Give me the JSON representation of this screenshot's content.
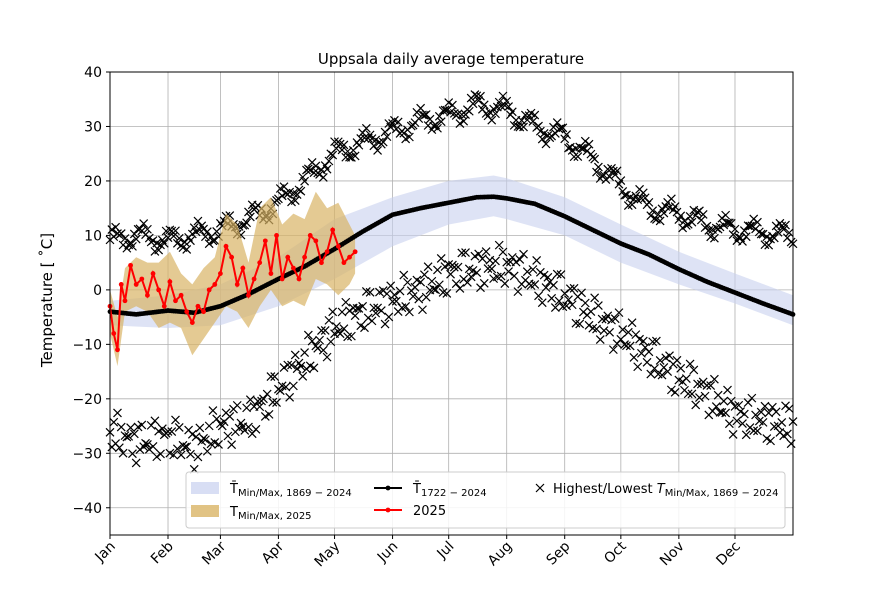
{
  "chart_data": {
    "type": "line",
    "title": "Uppsala daily average temperature",
    "xlabel": "",
    "ylabel": "Temperature [ ˚C]",
    "ylim": [
      -45,
      40
    ],
    "yticks": [
      -40,
      -30,
      -20,
      -10,
      0,
      10,
      20,
      30,
      40
    ],
    "xlim": [
      1,
      366
    ],
    "months": [
      "Jan",
      "Feb",
      "Mar",
      "Apr",
      "May",
      "Jun",
      "Jul",
      "Aug",
      "Sep",
      "Oct",
      "Nov",
      "Dec"
    ],
    "month_start_days": [
      1,
      32,
      60,
      91,
      121,
      152,
      182,
      213,
      244,
      274,
      305,
      335
    ],
    "grid": true,
    "legend_position": "lower-center",
    "legend": {
      "band_hist": {
        "main": "T̄",
        "sub": "Min/Max, 1869 − 2024"
      },
      "band_2025": {
        "main": "T",
        "sub": "Min/Max, 2025"
      },
      "mean_hist": {
        "main": "T̄",
        "sub": "1722 − 2024"
      },
      "line_2025": {
        "main": "2025"
      },
      "records": {
        "main": "Highest/Lowest ",
        "italic": "T",
        "sub": "Min/Max, 1869 − 2024"
      }
    },
    "colors": {
      "band_hist": "#c8d0ef",
      "band_2025": "#d9b465",
      "mean_hist": "#000000",
      "line_2025": "#ff0000",
      "records": "#000000",
      "grid": "#b0b0b0"
    },
    "mean_hist": {
      "x": [
        1,
        15,
        32,
        46,
        60,
        75,
        91,
        105,
        121,
        136,
        152,
        167,
        182,
        197,
        206,
        213,
        228,
        244,
        259,
        274,
        289,
        305,
        320,
        335,
        350,
        366
      ],
      "y": [
        -4,
        -4.5,
        -3.8,
        -4.2,
        -3,
        -0.8,
        2,
        4.3,
        7.5,
        10.7,
        13.8,
        15,
        16,
        17,
        17.1,
        16.8,
        15.8,
        13.5,
        11,
        8.5,
        6.5,
        3.8,
        1.5,
        -0.5,
        -2.5,
        -4.5
      ]
    },
    "band_hist": {
      "x": [
        1,
        32,
        60,
        91,
        121,
        152,
        182,
        206,
        213,
        244,
        274,
        305,
        335,
        366
      ],
      "upper": [
        -2,
        -1,
        1,
        6,
        13,
        17,
        20,
        21,
        20.5,
        17,
        12,
        7,
        3,
        -1
      ],
      "lower": [
        -6.5,
        -7,
        -6.5,
        -3,
        2,
        8,
        12,
        13.5,
        13,
        10,
        5,
        1,
        -2.5,
        -6.5
      ]
    },
    "line_2025": {
      "x": [
        1,
        3,
        5,
        7,
        9,
        12,
        15,
        18,
        21,
        24,
        27,
        30,
        33,
        36,
        39,
        42,
        45,
        48,
        51,
        54,
        57,
        60,
        63,
        66,
        69,
        72,
        75,
        78,
        81,
        84,
        87,
        90,
        93,
        96,
        99,
        102,
        105,
        108,
        111,
        114,
        117,
        120,
        123,
        126,
        129,
        132
      ],
      "y": [
        -3,
        -8,
        -11,
        1,
        -2,
        4.5,
        1,
        2,
        -1,
        3,
        0,
        -3,
        1.5,
        -2,
        -1,
        -4,
        -6,
        -3,
        -4,
        0,
        1,
        3,
        8,
        6,
        1,
        4,
        -1,
        2,
        5,
        9,
        3,
        10,
        2,
        6,
        4,
        2,
        6,
        10,
        9,
        5,
        7,
        11,
        8,
        5,
        6,
        7
      ]
    },
    "band_2025": {
      "x": [
        1,
        5,
        9,
        15,
        21,
        27,
        33,
        39,
        45,
        51,
        57,
        63,
        69,
        75,
        81,
        87,
        93,
        99,
        105,
        111,
        117,
        123,
        129,
        132
      ],
      "upper": [
        0,
        -5,
        4,
        6,
        5,
        5,
        7,
        3,
        1,
        4,
        6,
        14,
        12,
        5,
        15,
        17,
        12,
        14,
        13,
        18,
        15,
        16,
        12,
        10
      ],
      "lower": [
        -8,
        -14,
        -4,
        -3,
        -4,
        -7,
        -6,
        -7,
        -12,
        -9,
        -6,
        -3,
        -4,
        -7,
        -3,
        0,
        -3,
        -2,
        -3,
        2,
        1,
        -1,
        1,
        3
      ]
    },
    "record_high": {
      "x": [
        1,
        15,
        32,
        46,
        60,
        75,
        91,
        105,
        121,
        136,
        152,
        167,
        182,
        197,
        213,
        228,
        244,
        259,
        274,
        289,
        305,
        320,
        335,
        350,
        366
      ],
      "y": [
        9,
        10,
        9,
        10,
        11,
        13,
        16,
        20,
        25,
        27,
        29,
        31,
        32,
        34,
        33,
        30,
        28,
        24,
        19,
        15,
        14,
        12,
        11,
        10.5,
        10
      ]
    },
    "record_low": {
      "x": [
        1,
        15,
        32,
        46,
        60,
        75,
        91,
        105,
        121,
        136,
        152,
        167,
        182,
        197,
        213,
        228,
        244,
        259,
        274,
        289,
        305,
        320,
        335,
        350,
        366
      ],
      "y": [
        -26,
        -28,
        -27,
        -29,
        -25,
        -24,
        -18,
        -13,
        -7,
        -4,
        -2,
        0,
        3,
        4,
        4.5,
        2,
        -1,
        -5,
        -8,
        -12,
        -16,
        -19,
        -23,
        -24,
        -25
      ]
    }
  }
}
